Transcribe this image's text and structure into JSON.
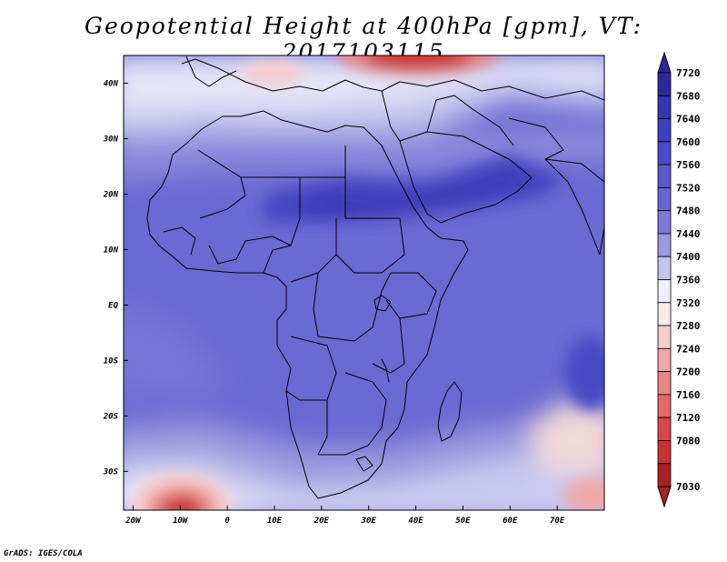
{
  "title": "Geopotential Height at 400hPa [gpm], VT: 2017103115",
  "credit": "GrADS: IGES/COLA",
  "map": {
    "lon_range": [
      -22,
      80
    ],
    "lat_range": [
      -37,
      45
    ],
    "lon_ticks": [
      {
        "value": -20,
        "label": "20W"
      },
      {
        "value": -10,
        "label": "10W"
      },
      {
        "value": 0,
        "label": "0"
      },
      {
        "value": 10,
        "label": "10E"
      },
      {
        "value": 20,
        "label": "20E"
      },
      {
        "value": 30,
        "label": "30E"
      },
      {
        "value": 40,
        "label": "40E"
      },
      {
        "value": 50,
        "label": "50E"
      },
      {
        "value": 60,
        "label": "60E"
      },
      {
        "value": 70,
        "label": "70E"
      }
    ],
    "lat_ticks": [
      {
        "value": 40,
        "label": "40N"
      },
      {
        "value": 30,
        "label": "30N"
      },
      {
        "value": 20,
        "label": "20N"
      },
      {
        "value": 10,
        "label": "10N"
      },
      {
        "value": 0,
        "label": "EQ"
      },
      {
        "value": -10,
        "label": "10S"
      },
      {
        "value": -20,
        "label": "20S"
      },
      {
        "value": -30,
        "label": "30S"
      }
    ]
  },
  "colorbar": {
    "levels": [
      {
        "label": "7720",
        "color": "#2a2a9a"
      },
      {
        "label": "7680",
        "color": "#3535b0"
      },
      {
        "label": "7640",
        "color": "#4040c0"
      },
      {
        "label": "7600",
        "color": "#4c4cc8"
      },
      {
        "label": "7560",
        "color": "#5858cc"
      },
      {
        "label": "7520",
        "color": "#6666d2"
      },
      {
        "label": "7480",
        "color": "#7a7ad8"
      },
      {
        "label": "7440",
        "color": "#9a9ae0"
      },
      {
        "label": "7400",
        "color": "#c4c4ee"
      },
      {
        "label": "7360",
        "color": "#f0f0fc"
      },
      {
        "label": "7320",
        "color": "#fbeaea"
      },
      {
        "label": "7280",
        "color": "#f6cccc"
      },
      {
        "label": "7240",
        "color": "#f0a8a8"
      },
      {
        "label": "7200",
        "color": "#e88888"
      },
      {
        "label": "7160",
        "color": "#e06868"
      },
      {
        "label": "7120",
        "color": "#d84848"
      },
      {
        "label": "7080",
        "color": "#c83434"
      },
      {
        "label": "7030",
        "color": "#a82222"
      }
    ]
  }
}
